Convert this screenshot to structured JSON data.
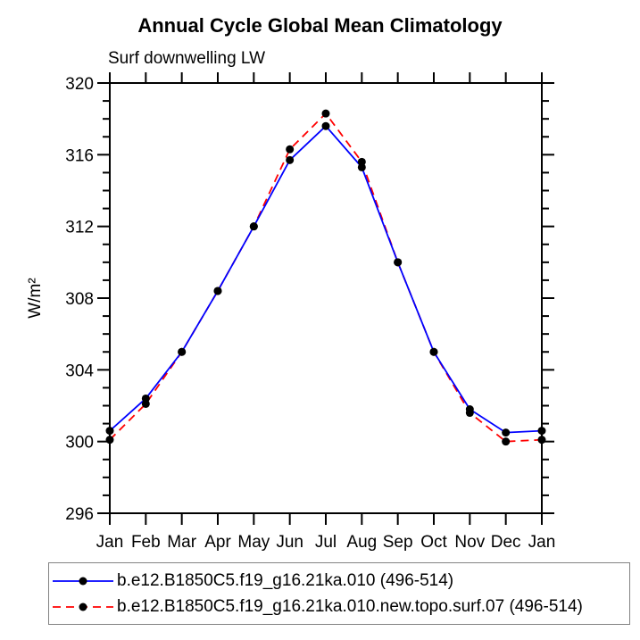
{
  "page": {
    "background": "#ffffff",
    "axis_color": "#000000",
    "legend_border_color": "#828282"
  },
  "chart_data": {
    "type": "line",
    "title": "Annual Cycle Global Mean Climatology",
    "subtitle": "Surf downwelling LW",
    "ylabel": "W/m²",
    "xlabel": "",
    "categories": [
      "Jan",
      "Feb",
      "Mar",
      "Apr",
      "May",
      "Jun",
      "Jul",
      "Aug",
      "Sep",
      "Oct",
      "Nov",
      "Dec",
      "Jan"
    ],
    "ylim": [
      296,
      320
    ],
    "ytick_major_step": 4,
    "ytick_minor_step": 1,
    "ytick_major_labels": [
      "296",
      "300",
      "304",
      "308",
      "312",
      "316",
      "320"
    ],
    "grid": false,
    "legend_position": "bottom",
    "marker_color": "#000000",
    "series": [
      {
        "name": "b.e12.B1850C5.f19_g16.21ka.010 (496-514)",
        "color": "#0000ff",
        "style": "solid",
        "marker": "black-dot",
        "values": [
          300.6,
          302.4,
          305.0,
          308.4,
          312.0,
          315.7,
          317.6,
          315.3,
          310.0,
          305.0,
          301.8,
          300.5,
          300.6
        ]
      },
      {
        "name": "b.e12.B1850C5.f19_g16.21ka.010.new.topo.surf.07 (496-514)",
        "color": "#ff0000",
        "style": "dashed",
        "marker": "black-dot",
        "values": [
          300.1,
          302.1,
          305.0,
          308.4,
          312.0,
          316.3,
          318.3,
          315.6,
          310.0,
          305.0,
          301.6,
          300.0,
          300.1
        ]
      }
    ]
  }
}
